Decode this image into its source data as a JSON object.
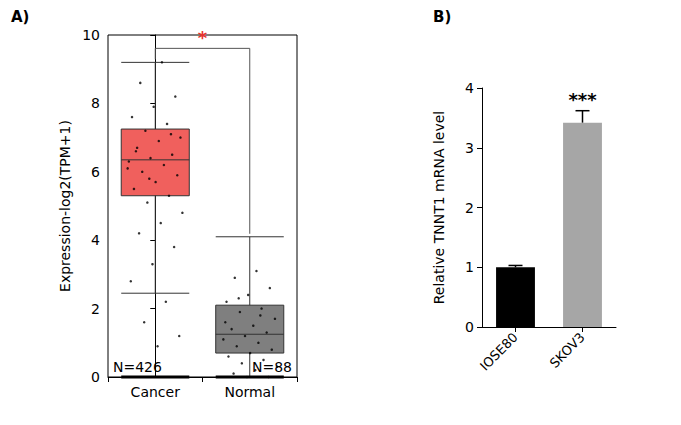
{
  "chart_data": [
    {
      "type": "boxplot",
      "title": "A)",
      "ylabel": "Expression-log2(TPM+1)",
      "categories": [
        "Cancer",
        "Normal"
      ],
      "boxes": [
        [
          2.45,
          5.3,
          6.35,
          7.25,
          9.2
        ],
        [
          0,
          0.7,
          1.25,
          2.1,
          4.1
        ]
      ],
      "points": [
        [
          9.2,
          8.6,
          8.2,
          7.9,
          7.6,
          7.4,
          7.2,
          7.0,
          6.9,
          6.7,
          6.5,
          6.4,
          6.3,
          6.2,
          6.0,
          5.9,
          5.7,
          5.5,
          5.3,
          5.1,
          4.8,
          4.5,
          4.2,
          3.8,
          3.3,
          2.8,
          2.2,
          1.6,
          1.2,
          0.9,
          6.6,
          7.1,
          5.8,
          6.1
        ],
        [
          3.1,
          2.9,
          2.6,
          2.4,
          2.2,
          2.0,
          1.9,
          1.7,
          1.5,
          1.4,
          1.3,
          1.2,
          1.1,
          1.0,
          0.9,
          0.8,
          0.7,
          0.6,
          0.5,
          0.4,
          0.3,
          0.2,
          0.1,
          0,
          0,
          1.6,
          1.8,
          2.3
        ]
      ],
      "colors": [
        "#f0605d",
        "#7f7f7f"
      ],
      "ylim": [
        0,
        10
      ],
      "yticks": [
        0,
        2,
        4,
        6,
        8,
        10
      ],
      "grid": false,
      "annotations": [
        {
          "text": "*",
          "between": [
            "Cancer",
            "Normal"
          ]
        },
        {
          "text": "N=426",
          "category": "Cancer"
        },
        {
          "text": "N=88",
          "category": "Normal"
        }
      ]
    },
    {
      "type": "bar",
      "title": "B)",
      "ylabel": "Relative TNNT1 mRNA level",
      "categories": [
        "IOSE80",
        "SKOV3"
      ],
      "values": [
        1.0,
        3.42
      ],
      "errors": [
        0.03,
        0.2
      ],
      "colors": [
        "#000000",
        "#a6a6a6"
      ],
      "ylim": [
        0,
        4
      ],
      "yticks": [
        0,
        1,
        2,
        3,
        4
      ],
      "grid": false,
      "annotations": [
        {
          "text": "***",
          "category": "SKOV3"
        }
      ]
    }
  ]
}
